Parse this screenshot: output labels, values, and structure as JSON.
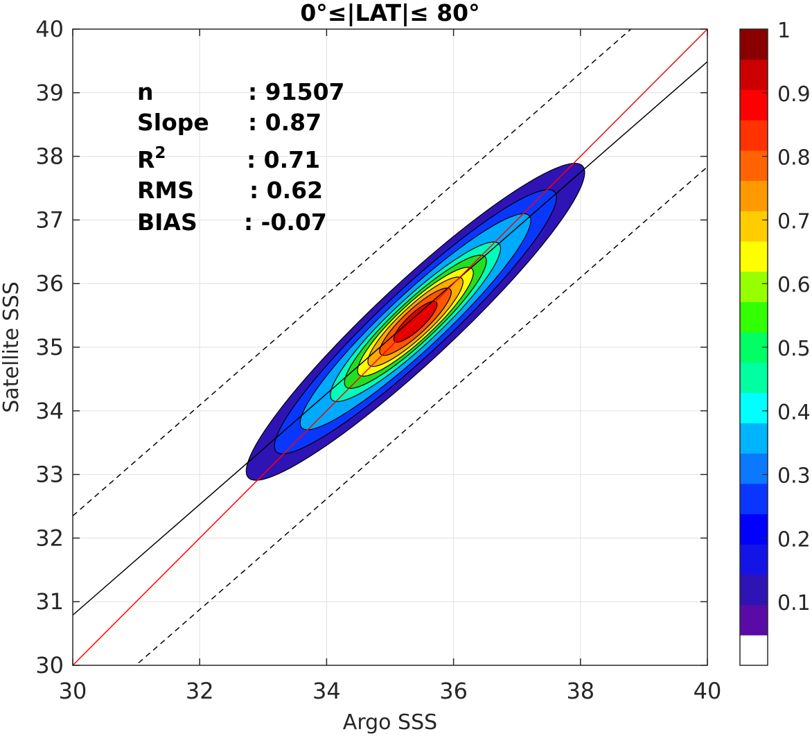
{
  "chart_data": {
    "type": "heatmap",
    "title": "0°≤|LAT|≤ 80°",
    "xlabel": "Argo SSS",
    "ylabel": "Satellite SSS",
    "xlim": [
      30,
      40
    ],
    "ylim": [
      30,
      40
    ],
    "xticks": [
      "30",
      "32",
      "34",
      "36",
      "38",
      "40"
    ],
    "yticks": [
      "30",
      "31",
      "32",
      "33",
      "34",
      "35",
      "36",
      "37",
      "38",
      "39",
      "40"
    ],
    "grid": true,
    "stats": [
      {
        "label": "n",
        "value": ": 91507"
      },
      {
        "label": "Slope",
        "value": ": 0.87"
      },
      {
        "label": "R",
        "sup": "2",
        "value": ": 0.71"
      },
      {
        "label": "RMS",
        "value": ": 0.62"
      },
      {
        "label": "BIAS",
        "value": ": -0.07"
      }
    ],
    "lines": {
      "identity": {
        "color": "#ff0000",
        "slope": 1.0,
        "intercept": 0.0
      },
      "fit": {
        "color": "#000000",
        "slope": 0.87,
        "intercept": 4.6885
      },
      "upper_bound": {
        "color": "#000000",
        "style": "dashed",
        "slope": 0.87,
        "intercept": 6.2486
      },
      "lower_bound": {
        "color": "#000000",
        "style": "dashed",
        "slope": 0.87,
        "intercept": 3.0354
      }
    },
    "density": {
      "center": [
        35.4,
        35.4
      ],
      "axis_angle_deg": 43,
      "levels": [
        {
          "level": 0.05,
          "color": "#2e14b4",
          "a": 3.6,
          "b": 0.62
        },
        {
          "level": 0.2,
          "color": "#0a37ff",
          "a": 3.0,
          "b": 0.52
        },
        {
          "level": 0.3,
          "color": "#00aaff",
          "a": 2.45,
          "b": 0.44
        },
        {
          "level": 0.4,
          "color": "#00ffbb",
          "a": 1.8,
          "b": 0.37
        },
        {
          "level": 0.5,
          "color": "#22e020",
          "a": 1.5,
          "b": 0.32
        },
        {
          "level": 0.6,
          "color": "#ffff00",
          "a": 1.22,
          "b": 0.28
        },
        {
          "level": 0.7,
          "color": "#ffaa00",
          "a": 1.0,
          "b": 0.24
        },
        {
          "level": 0.8,
          "color": "#ff5500",
          "a": 0.75,
          "b": 0.19
        },
        {
          "level": 0.9,
          "color": "#e30000",
          "a": 0.45,
          "b": 0.13
        }
      ]
    },
    "colorbar": {
      "range": [
        0,
        1
      ],
      "tick_labels": [
        "0.1",
        "0.2",
        "0.3",
        "0.4",
        "0.5",
        "0.6",
        "0.7",
        "0.8",
        "0.9",
        "1"
      ],
      "colors": [
        "#ffffff",
        "#5a0aa6",
        "#2e14b4",
        "#1414e6",
        "#0000ff",
        "#0a37ff",
        "#0a78ff",
        "#00b4ff",
        "#00ffff",
        "#00ffa0",
        "#00ff64",
        "#32ff00",
        "#96ff00",
        "#ffff00",
        "#ffcc00",
        "#ff9900",
        "#ff6400",
        "#ff3200",
        "#ff0000",
        "#cc0000",
        "#8a0000"
      ]
    }
  }
}
